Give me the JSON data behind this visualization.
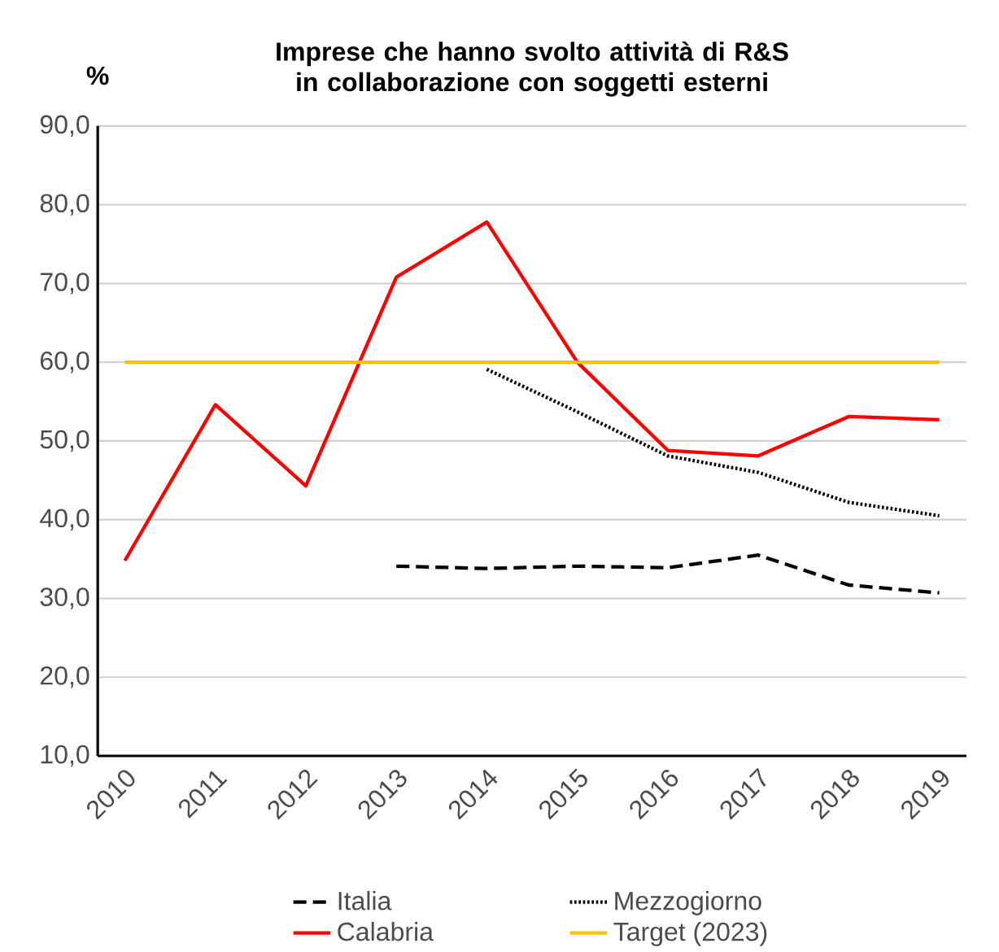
{
  "chart_data": {
    "type": "line",
    "title": "Imprese che hanno svolto attività di R&S in collaborazione con soggetti esterni",
    "ylabel": "%",
    "categories": [
      "2010",
      "2011",
      "2012",
      "2013",
      "2014",
      "2015",
      "2016",
      "2017",
      "2018",
      "2019"
    ],
    "series": [
      {
        "name": "Italia",
        "color": "#000000",
        "line_style": "dashed",
        "values": [
          null,
          null,
          null,
          34.1,
          33.8,
          34.1,
          33.9,
          35.5,
          31.7,
          30.7
        ]
      },
      {
        "name": "Mezzogiorno",
        "color": "#000000",
        "line_style": "dotted",
        "values": [
          null,
          null,
          null,
          null,
          59.1,
          53.7,
          48.1,
          46.0,
          42.2,
          40.5
        ]
      },
      {
        "name": "Calabria",
        "color": "#ff0000",
        "line_style": "solid",
        "values": [
          34.8,
          54.6,
          44.3,
          70.8,
          77.8,
          60.0,
          48.8,
          48.1,
          53.1,
          52.7
        ]
      },
      {
        "name": "Target (2023)",
        "color": "#ffc000",
        "line_style": "solid",
        "values": [
          60,
          60,
          60,
          60,
          60,
          60,
          60,
          60,
          60,
          60
        ]
      }
    ],
    "ylim": [
      10,
      90
    ],
    "yticks": [
      {
        "value": 10,
        "label": "10,0"
      },
      {
        "value": 20,
        "label": "20,0"
      },
      {
        "value": 30,
        "label": "30,0"
      },
      {
        "value": 40,
        "label": "40,0"
      },
      {
        "value": 50,
        "label": "50,0"
      },
      {
        "value": 60,
        "label": "60,0"
      },
      {
        "value": 70,
        "label": "70,0"
      },
      {
        "value": 80,
        "label": "80,0"
      },
      {
        "value": 90,
        "label": "90,0"
      }
    ],
    "grid": "y",
    "legend": "bottom",
    "marker": "none"
  }
}
